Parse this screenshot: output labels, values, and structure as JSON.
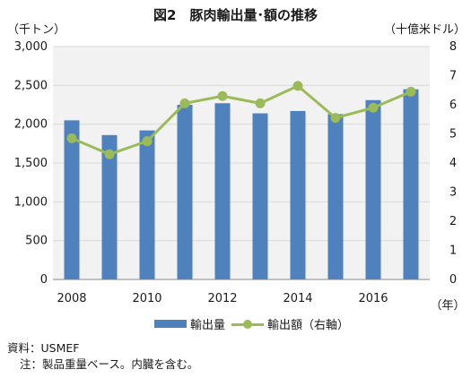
{
  "chart_data": {
    "type": "bar",
    "title": "図2　豚肉輸出量･額の推移",
    "left_unit": "（千トン）",
    "right_unit": "（十億米ドル）",
    "x_unit": "（年）",
    "categories": [
      "2008",
      "2009",
      "2010",
      "2011",
      "2012",
      "2013",
      "2014",
      "2015",
      "2016",
      "2017"
    ],
    "x_tick_labels": [
      "2008",
      "",
      "2010",
      "",
      "2012",
      "",
      "2014",
      "",
      "2016",
      ""
    ],
    "series": [
      {
        "name": "輸出量",
        "type": "bar",
        "axis": "left",
        "values": [
          2050,
          1860,
          1920,
          2250,
          2270,
          2140,
          2170,
          2130,
          2310,
          2450
        ]
      },
      {
        "name": "輸出額（右軸）",
        "type": "line",
        "axis": "right",
        "values": [
          4.85,
          4.3,
          4.75,
          6.05,
          6.3,
          6.05,
          6.65,
          5.55,
          5.9,
          6.45
        ]
      }
    ],
    "y_left": {
      "min": 0,
      "max": 3000,
      "step": 500,
      "tick_labels": [
        "0",
        "500",
        "1,000",
        "1,500",
        "2,000",
        "2,500",
        "3,000"
      ]
    },
    "y_right": {
      "min": 0,
      "max": 8,
      "step": 1,
      "tick_labels": [
        "0",
        "1",
        "2",
        "3",
        "4",
        "5",
        "6",
        "7",
        "8"
      ]
    },
    "grid": true,
    "legend_position": "bottom",
    "colors": {
      "bar": "#4f81bd",
      "line": "#9bbb59",
      "grid": "#d9d9d9",
      "plot_bg": "#f2f2f2"
    }
  },
  "notes": {
    "source": "資料：USMEF",
    "note": "注：製品重量ベース。内臓を含む。"
  }
}
